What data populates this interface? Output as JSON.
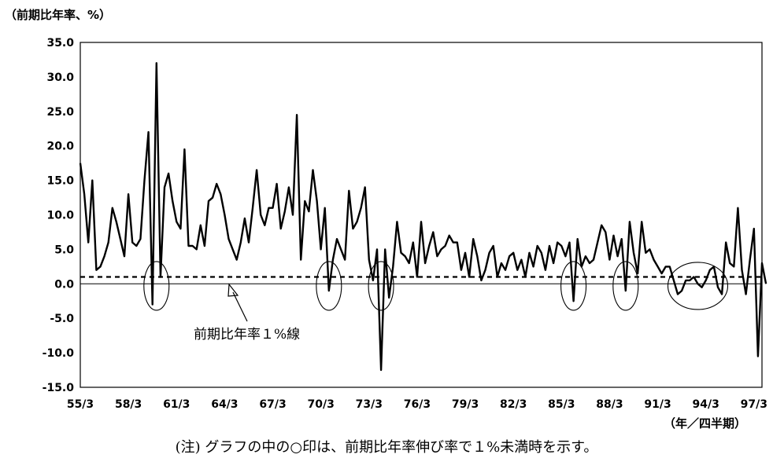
{
  "chart_data": {
    "type": "line",
    "title": "",
    "ylabel": "（前期比年率、%）",
    "xlabel": "（年／四半期）",
    "note": "(注) グラフの中の○印は、前期比年率伸び率で１%未満時を示す。",
    "annotation": "前期比年率１%線",
    "ylim": [
      -15,
      35
    ],
    "yticks": [
      "35.0",
      "30.0",
      "25.0",
      "20.0",
      "15.0",
      "10.0",
      "5.0",
      "0.0",
      "-5.0",
      "-10.0",
      "-15.0"
    ],
    "xlim": [
      1955.0,
      1997.5
    ],
    "xticks": [
      "55/3",
      "58/3",
      "61/3",
      "64/3",
      "67/3",
      "70/3",
      "73/3",
      "76/3",
      "79/3",
      "82/3",
      "85/3",
      "88/3",
      "91/3",
      "94/3",
      "97/3"
    ],
    "reference_lines": [
      {
        "value": 0,
        "style": "solid"
      },
      {
        "value": 1,
        "style": "dashed"
      }
    ],
    "circled_periods": [
      "59/4",
      "70/3",
      "73/4",
      "85/4",
      "89/1",
      "93/3"
    ],
    "series": [
      {
        "values": [
          [
            1955.0,
            17.5
          ],
          [
            1955.25,
            13.0
          ],
          [
            1955.5,
            6.0
          ],
          [
            1955.75,
            15.0
          ],
          [
            1956.0,
            2.0
          ],
          [
            1956.25,
            2.5
          ],
          [
            1956.5,
            4.0
          ],
          [
            1956.75,
            6.0
          ],
          [
            1957.0,
            11.0
          ],
          [
            1957.25,
            9.0
          ],
          [
            1957.5,
            6.5
          ],
          [
            1957.75,
            4.0
          ],
          [
            1958.0,
            13.0
          ],
          [
            1958.25,
            6.0
          ],
          [
            1958.5,
            5.5
          ],
          [
            1958.75,
            6.5
          ],
          [
            1959.0,
            15.0
          ],
          [
            1959.25,
            22.0
          ],
          [
            1959.5,
            -3.0
          ],
          [
            1959.75,
            32.0
          ],
          [
            1960.0,
            1.0
          ],
          [
            1960.25,
            14.0
          ],
          [
            1960.5,
            16.0
          ],
          [
            1960.75,
            12.0
          ],
          [
            1961.0,
            9.0
          ],
          [
            1961.25,
            8.0
          ],
          [
            1961.5,
            19.5
          ],
          [
            1961.75,
            5.5
          ],
          [
            1962.0,
            5.5
          ],
          [
            1962.25,
            5.0
          ],
          [
            1962.5,
            8.5
          ],
          [
            1962.75,
            5.5
          ],
          [
            1963.0,
            12.0
          ],
          [
            1963.25,
            12.5
          ],
          [
            1963.5,
            14.5
          ],
          [
            1963.75,
            13.0
          ],
          [
            1964.0,
            10.0
          ],
          [
            1964.25,
            6.5
          ],
          [
            1964.5,
            5.0
          ],
          [
            1964.75,
            3.5
          ],
          [
            1965.0,
            6.0
          ],
          [
            1965.25,
            9.5
          ],
          [
            1965.5,
            6.0
          ],
          [
            1965.75,
            11.0
          ],
          [
            1966.0,
            16.5
          ],
          [
            1966.25,
            10.0
          ],
          [
            1966.5,
            8.5
          ],
          [
            1966.75,
            11.0
          ],
          [
            1967.0,
            11.0
          ],
          [
            1967.25,
            14.5
          ],
          [
            1967.5,
            8.0
          ],
          [
            1967.75,
            10.5
          ],
          [
            1968.0,
            14.0
          ],
          [
            1968.25,
            10.0
          ],
          [
            1968.5,
            24.5
          ],
          [
            1968.75,
            3.5
          ],
          [
            1969.0,
            12.0
          ],
          [
            1969.25,
            10.5
          ],
          [
            1969.5,
            16.5
          ],
          [
            1969.75,
            12.0
          ],
          [
            1970.0,
            5.0
          ],
          [
            1970.25,
            11.0
          ],
          [
            1970.5,
            -1.0
          ],
          [
            1970.75,
            3.5
          ],
          [
            1971.0,
            6.5
          ],
          [
            1971.25,
            5.0
          ],
          [
            1971.5,
            3.5
          ],
          [
            1971.75,
            13.5
          ],
          [
            1972.0,
            8.0
          ],
          [
            1972.25,
            9.0
          ],
          [
            1972.5,
            11.0
          ],
          [
            1972.75,
            14.0
          ],
          [
            1973.0,
            3.5
          ],
          [
            1973.25,
            0.5
          ],
          [
            1973.5,
            5.0
          ],
          [
            1973.75,
            -12.5
          ],
          [
            1974.0,
            5.0
          ],
          [
            1974.25,
            -2.0
          ],
          [
            1974.5,
            2.5
          ],
          [
            1974.75,
            9.0
          ],
          [
            1975.0,
            4.5
          ],
          [
            1975.25,
            4.0
          ],
          [
            1975.5,
            3.0
          ],
          [
            1975.75,
            6.0
          ],
          [
            1976.0,
            1.0
          ],
          [
            1976.25,
            9.0
          ],
          [
            1976.5,
            3.0
          ],
          [
            1976.75,
            5.5
          ],
          [
            1977.0,
            7.5
          ],
          [
            1977.25,
            4.0
          ],
          [
            1977.5,
            5.0
          ],
          [
            1977.75,
            5.5
          ],
          [
            1978.0,
            7.0
          ],
          [
            1978.25,
            6.0
          ],
          [
            1978.5,
            6.0
          ],
          [
            1978.75,
            2.0
          ],
          [
            1979.0,
            4.5
          ],
          [
            1979.25,
            1.0
          ],
          [
            1979.5,
            6.5
          ],
          [
            1979.75,
            4.0
          ],
          [
            1980.0,
            0.5
          ],
          [
            1980.25,
            2.0
          ],
          [
            1980.5,
            4.5
          ],
          [
            1980.75,
            5.5
          ],
          [
            1981.0,
            1.0
          ],
          [
            1981.25,
            3.0
          ],
          [
            1981.5,
            2.0
          ],
          [
            1981.75,
            4.0
          ],
          [
            1982.0,
            4.5
          ],
          [
            1982.25,
            2.0
          ],
          [
            1982.5,
            3.5
          ],
          [
            1982.75,
            1.0
          ],
          [
            1983.0,
            4.5
          ],
          [
            1983.25,
            2.5
          ],
          [
            1983.5,
            5.5
          ],
          [
            1983.75,
            4.5
          ],
          [
            1984.0,
            2.0
          ],
          [
            1984.25,
            5.5
          ],
          [
            1984.5,
            3.0
          ],
          [
            1984.75,
            6.0
          ],
          [
            1985.0,
            5.5
          ],
          [
            1985.25,
            4.0
          ],
          [
            1985.5,
            6.0
          ],
          [
            1985.75,
            -2.5
          ],
          [
            1986.0,
            6.5
          ],
          [
            1986.25,
            2.5
          ],
          [
            1986.5,
            4.0
          ],
          [
            1986.75,
            3.0
          ],
          [
            1987.0,
            3.5
          ],
          [
            1987.25,
            6.0
          ],
          [
            1987.5,
            8.5
          ],
          [
            1987.75,
            7.5
          ],
          [
            1988.0,
            3.5
          ],
          [
            1988.25,
            7.0
          ],
          [
            1988.5,
            4.0
          ],
          [
            1988.75,
            6.5
          ],
          [
            1989.0,
            -1.0
          ],
          [
            1989.25,
            9.0
          ],
          [
            1989.5,
            4.5
          ],
          [
            1989.75,
            1.5
          ],
          [
            1990.0,
            9.0
          ],
          [
            1990.25,
            4.5
          ],
          [
            1990.5,
            5.0
          ],
          [
            1990.75,
            3.5
          ],
          [
            1991.0,
            2.5
          ],
          [
            1991.25,
            1.5
          ],
          [
            1991.5,
            2.5
          ],
          [
            1991.75,
            2.5
          ],
          [
            1992.0,
            0.5
          ],
          [
            1992.25,
            -1.5
          ],
          [
            1992.5,
            -1.0
          ],
          [
            1992.75,
            0.5
          ],
          [
            1993.0,
            0.5
          ],
          [
            1993.25,
            1.0
          ],
          [
            1993.5,
            0.0
          ],
          [
            1993.75,
            -0.5
          ],
          [
            1994.0,
            0.5
          ],
          [
            1994.25,
            2.0
          ],
          [
            1994.5,
            2.5
          ],
          [
            1994.75,
            -0.5
          ],
          [
            1995.0,
            -1.5
          ],
          [
            1995.25,
            6.0
          ],
          [
            1995.5,
            3.0
          ],
          [
            1995.75,
            2.5
          ],
          [
            1996.0,
            11.0
          ],
          [
            1996.25,
            2.0
          ],
          [
            1996.5,
            -1.5
          ],
          [
            1996.75,
            3.5
          ],
          [
            1997.0,
            8.0
          ],
          [
            1997.25,
            -10.5
          ],
          [
            1997.5,
            3.0
          ],
          [
            1997.75,
            0.0
          ]
        ]
      }
    ]
  }
}
